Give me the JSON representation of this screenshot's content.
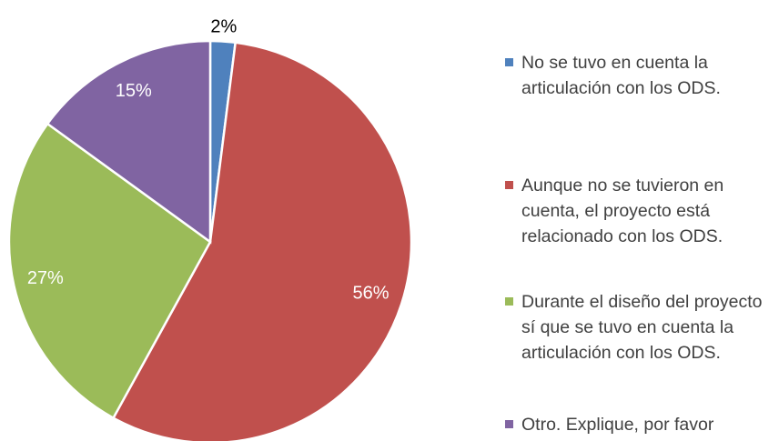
{
  "chart_data": {
    "type": "pie",
    "categories": [
      "No se tuvo en cuenta la articulación con los ODS.",
      "Aunque no se tuvieron en cuenta, el proyecto está relacionado con los ODS.",
      "Durante el diseño del proyecto sí que se tuvo en cuenta la articulación con los ODS.",
      "Otro. Explique, por favor"
    ],
    "values": [
      2,
      56,
      27,
      15
    ],
    "value_labels": [
      "2%",
      "56%",
      "27%",
      "15%"
    ],
    "colors": [
      "#4f81bd",
      "#c0504d",
      "#9bbb59",
      "#8064a2"
    ],
    "legend": "right"
  }
}
